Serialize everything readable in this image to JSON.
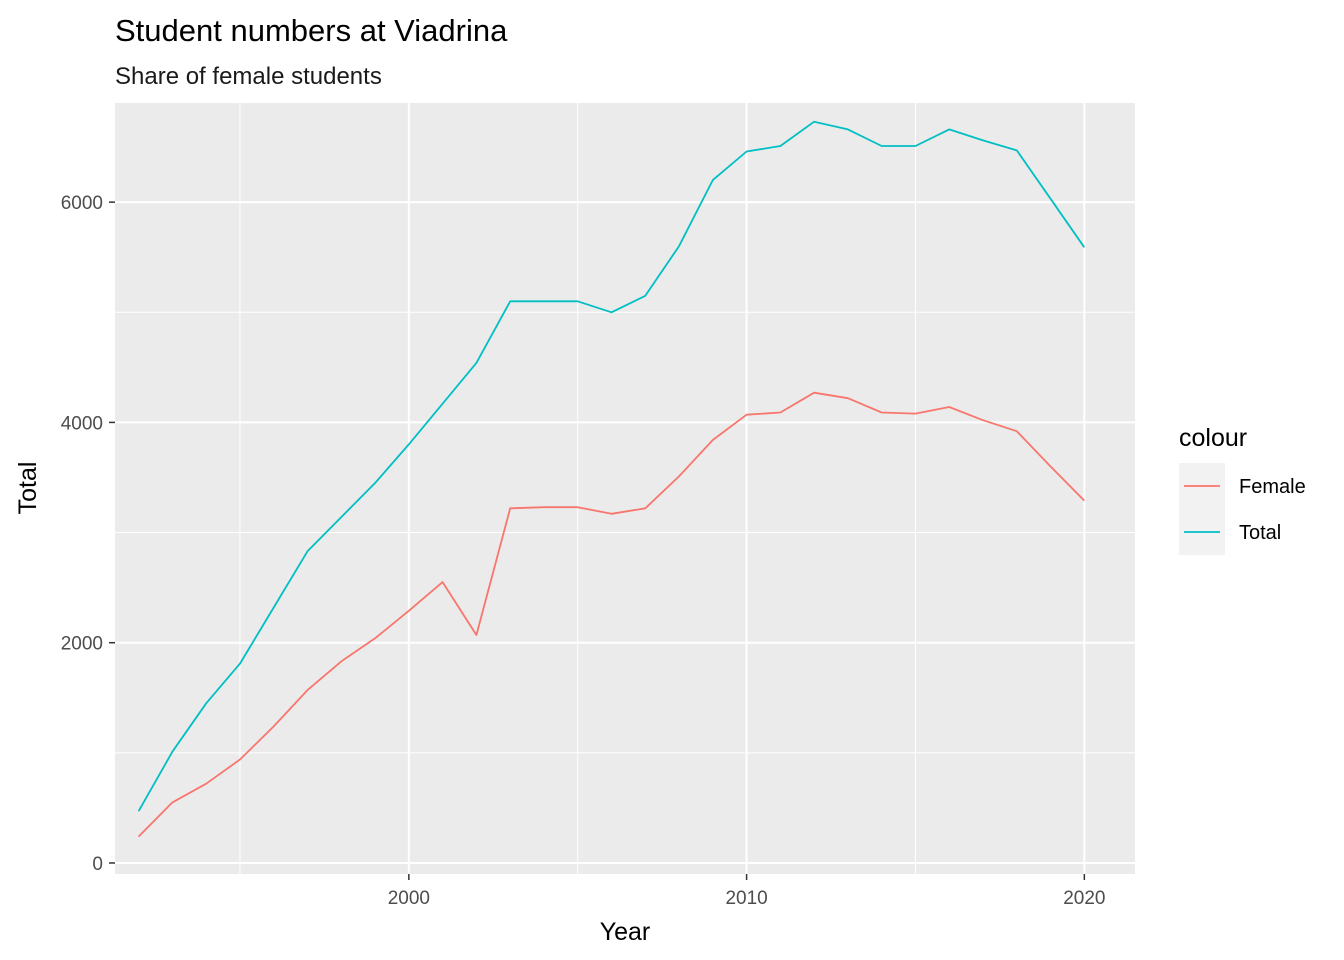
{
  "chart_data": {
    "type": "line",
    "title": "Student numbers at Viadrina",
    "subtitle": "Share of female students",
    "xlabel": "Year",
    "ylabel": "Total",
    "xlim": [
      1991.3,
      2021.5
    ],
    "ylim": [
      -100,
      6900
    ],
    "x_ticks": [
      2000,
      2010,
      2020
    ],
    "y_ticks": [
      0,
      2000,
      4000,
      6000
    ],
    "grid": true,
    "legend": {
      "title": "colour",
      "position": "right",
      "entries": [
        {
          "name": "Female",
          "color": "#F8766D"
        },
        {
          "name": "Total",
          "color": "#00BFC4"
        }
      ]
    },
    "x": [
      1992,
      1993,
      1994,
      1995,
      1996,
      1997,
      1998,
      1999,
      2000,
      2001,
      2002,
      2003,
      2004,
      2005,
      2006,
      2007,
      2008,
      2009,
      2010,
      2011,
      2012,
      2013,
      2014,
      2015,
      2016,
      2017,
      2018,
      2019,
      2020
    ],
    "series": [
      {
        "name": "Female",
        "color": "#F8766D",
        "values": [
          240,
          550,
          720,
          940,
          1240,
          1570,
          1830,
          2040,
          2290,
          2550,
          2070,
          3220,
          3230,
          3230,
          3170,
          3220,
          3510,
          3840,
          4070,
          4090,
          4270,
          4220,
          4090,
          4080,
          4140,
          4020,
          3920,
          3600,
          3290
        ]
      },
      {
        "name": "Total",
        "color": "#00BFC4",
        "values": [
          470,
          1010,
          1450,
          1810,
          2320,
          2830,
          3140,
          3450,
          3800,
          4170,
          4540,
          5100,
          5100,
          5100,
          5000,
          5150,
          5600,
          6200,
          6460,
          6510,
          6730,
          6660,
          6510,
          6510,
          6660,
          6560,
          6470,
          6030,
          5590
        ]
      }
    ]
  }
}
